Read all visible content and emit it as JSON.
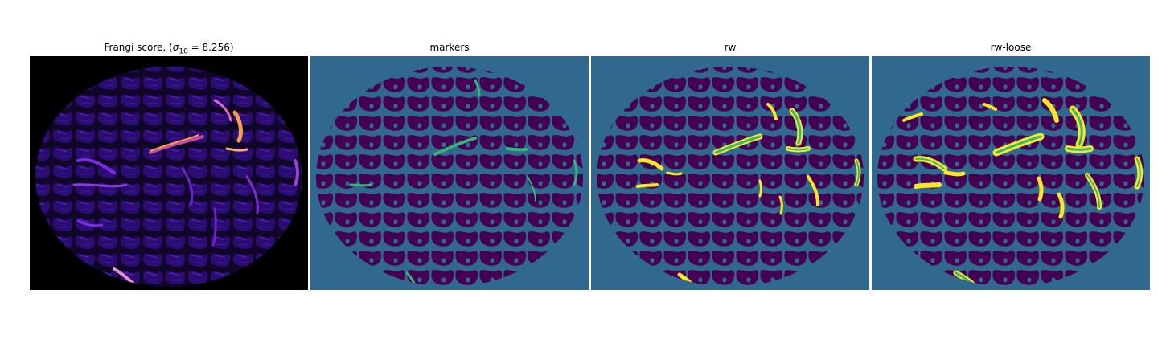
{
  "figure": {
    "panels": [
      {
        "title_prefix": "Frangi score, (",
        "title_math": "σ",
        "title_sub": "10",
        "title_suffix": " = 8.256)"
      },
      {
        "title": "markers"
      },
      {
        "title": "rw"
      },
      {
        "title": "rw-loose"
      }
    ]
  },
  "colors": {
    "background_black": "#000000",
    "viridis_dark": "#440154",
    "viridis_mid": "#31688e",
    "viridis_green": "#35b779",
    "viridis_yellow": "#fde725",
    "magma_purple": "#5b1fc8",
    "magma_orange": "#f3a046",
    "magma_light": "#fde0c0"
  }
}
